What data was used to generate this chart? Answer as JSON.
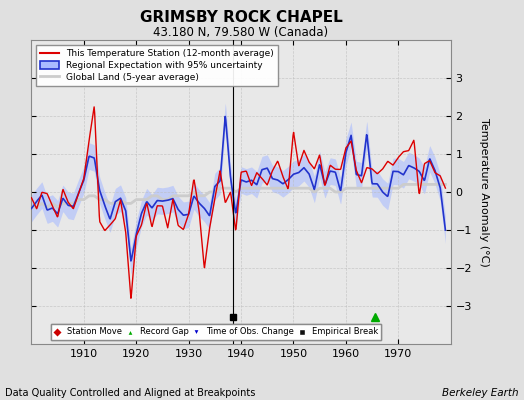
{
  "title": "GRIMSBY ROCK CHAPEL",
  "subtitle": "43.180 N, 79.580 W (Canada)",
  "ylabel": "Temperature Anomaly (°C)",
  "xlabel_note": "Data Quality Controlled and Aligned at Breakpoints",
  "credit": "Berkeley Earth",
  "ylim": [
    -4,
    4
  ],
  "xlim": [
    1900,
    1980
  ],
  "xticks": [
    1910,
    1920,
    1930,
    1940,
    1950,
    1960,
    1970
  ],
  "yticks": [
    -3,
    -2,
    -1,
    0,
    1,
    2,
    3
  ],
  "bg_color": "#e0e0e0",
  "plot_bg": "#e8e8e8",
  "empirical_break_x": 1938.5,
  "record_gap_x": 1965.5,
  "vertical_line_x": 1938.5,
  "legend_items": [
    {
      "label": "This Temperature Station (12-month average)",
      "color": "#dd0000"
    },
    {
      "label": "Regional Expectation with 95% uncertainty",
      "color": "#2222bb"
    },
    {
      "label": "Global Land (5-year average)",
      "color": "#bbbbbb"
    }
  ],
  "marker_legend": [
    {
      "label": "Station Move",
      "marker": "D",
      "color": "#cc0000"
    },
    {
      "label": "Record Gap",
      "marker": "^",
      "color": "#00aa00"
    },
    {
      "label": "Time of Obs. Change",
      "marker": "v",
      "color": "#0000cc"
    },
    {
      "label": "Empirical Break",
      "marker": "s",
      "color": "#111111"
    }
  ]
}
